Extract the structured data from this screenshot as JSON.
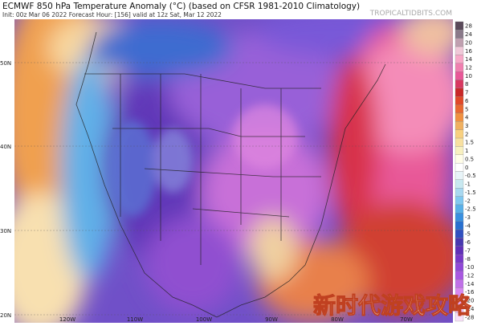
{
  "header": {
    "title": "ECMWF 850 hPa Temperature Anomaly (°C) (based on CFSR 1981-2010 Climatology)",
    "subtitle": "Init: 00z Mar 06 2022   Forecast Hour: [156]   valid at 12z Sat, Mar 12 2022",
    "branding": "TROPICALTIDBITS.COM"
  },
  "map": {
    "lat_labels": [
      "50N",
      "40N",
      "30N",
      "20N"
    ],
    "lon_labels": [
      "120W",
      "110W",
      "100W",
      "90W",
      "80W",
      "70W"
    ]
  },
  "colorbar": {
    "labels": [
      "28",
      "24",
      "20",
      "16",
      "14",
      "12",
      "10",
      "8",
      "7",
      "6",
      "5",
      "4",
      "3",
      "2",
      "1.5",
      "1",
      "0.5",
      "0",
      "-0.5",
      "-1",
      "-1.5",
      "-2",
      "-2.5",
      "-3",
      "-4",
      "-5",
      "-6",
      "-7",
      "-8",
      "-10",
      "-12",
      "-14",
      "-16",
      "-20",
      "-24",
      "-28"
    ]
  },
  "watermark": "新时代游戏攻略"
}
